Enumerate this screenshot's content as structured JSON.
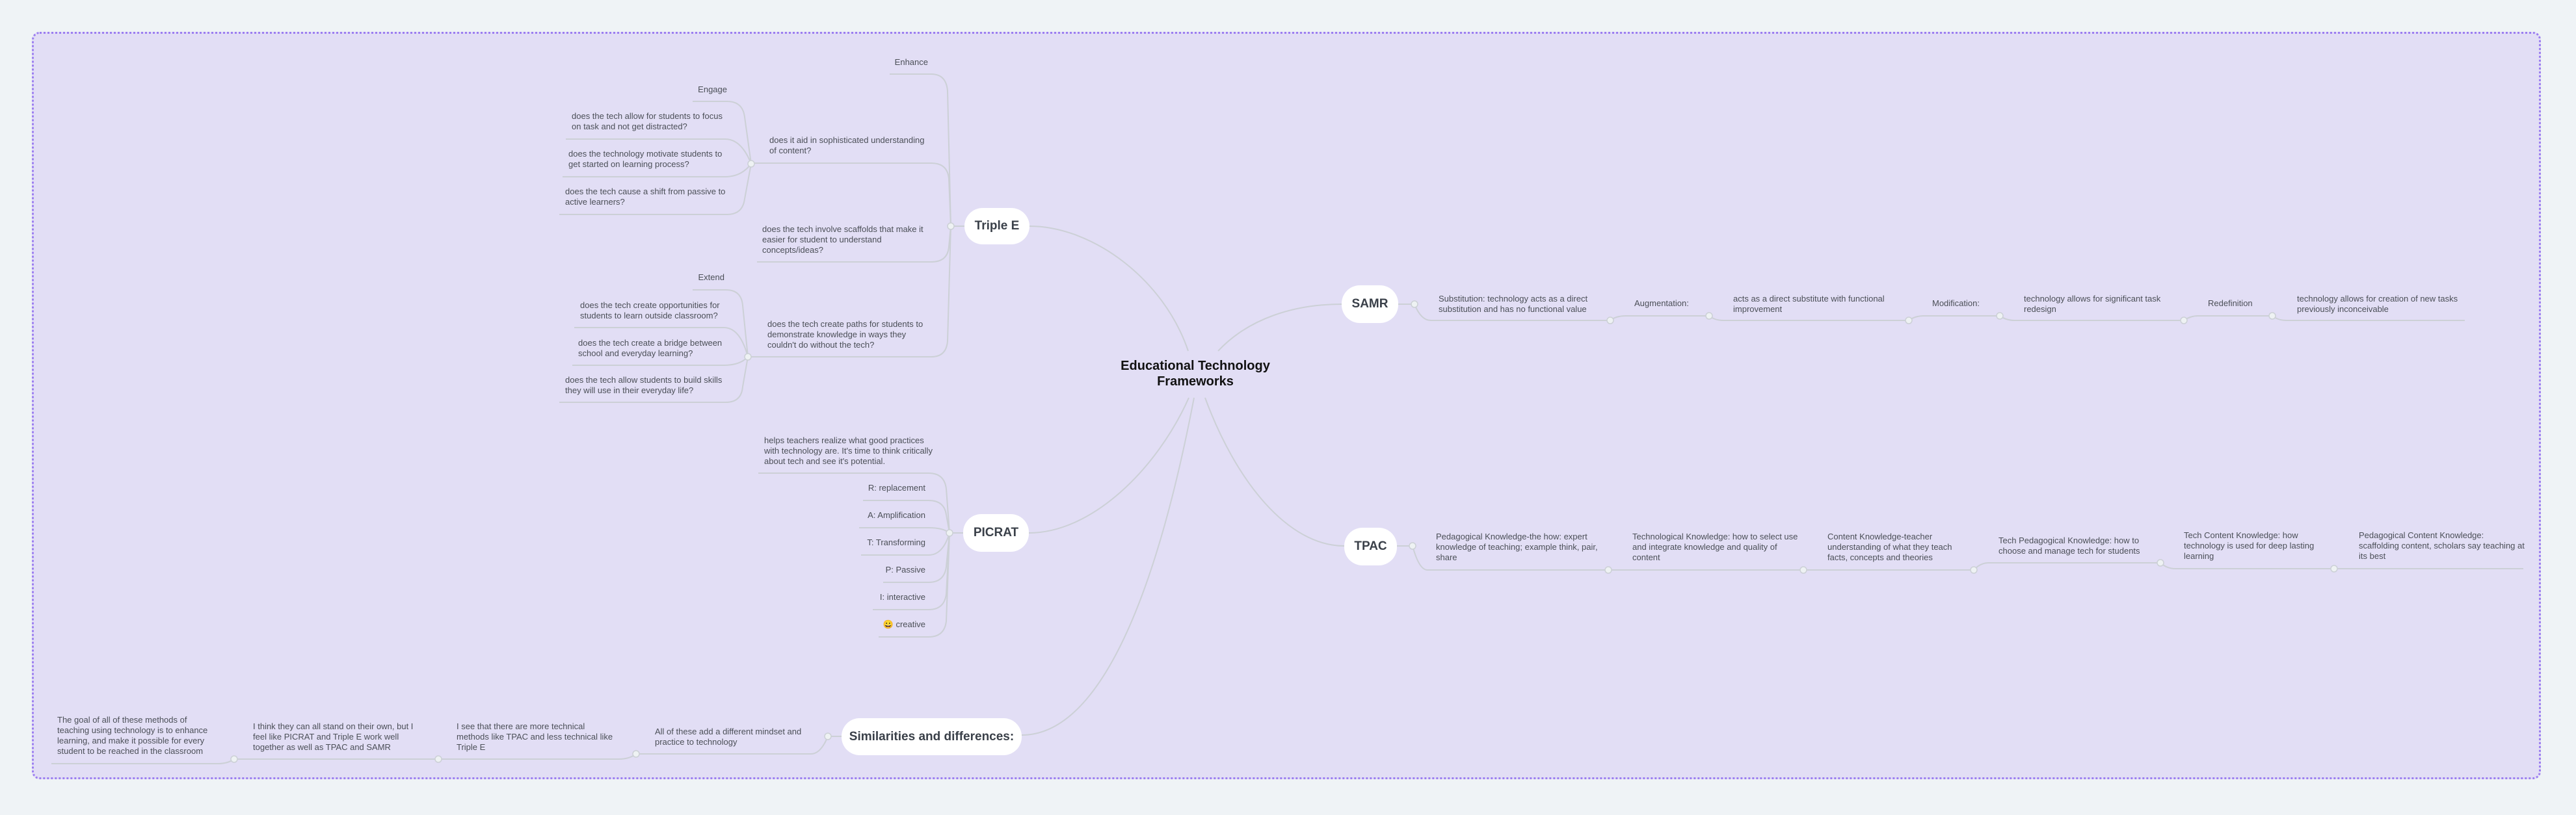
{
  "central": {
    "title": "Educational Technology Frameworks"
  },
  "triple_e": {
    "label": "Triple E",
    "enhance": "Enhance",
    "aid": "does it aid in sophisticated understanding of content?",
    "engage": "Engage",
    "engage_items": [
      "does the tech allow for students to focus on task and not get distracted?",
      "does the technology motivate students to get started on learning process?",
      "does the tech cause a shift from passive to active learners?"
    ],
    "scaffolds": "does the tech involve scaffolds that make it easier for student to understand concepts/ideas?",
    "paths": "does the tech create paths for students to demonstrate knowledge in ways they couldn't do without the tech?",
    "extend": "Extend",
    "extend_items": [
      "does the tech create opportunities for students to learn outside classroom?",
      "does the tech create a bridge between school and everyday learning?",
      "does the tech allow students to build skills they will use in their everyday life?"
    ]
  },
  "picrat": {
    "label": "PICRAT",
    "items": [
      "helps teachers realize what good practices with technology are. It's time to think critically about tech and see it's potential.",
      "R: replacement",
      "A: Amplification",
      "T: Transforming",
      "P: Passive",
      "I: interactive",
      "😀 creative"
    ]
  },
  "samr": {
    "label": "SAMR",
    "items": [
      "Substitution: technology acts as a direct substitution and has no functional value",
      "Augmentation:",
      "acts as a direct substitute with functional improvement",
      "Modification:",
      "technology allows for significant task redesign",
      "Redefinition",
      "technology allows for creation of new tasks previously inconceivable"
    ]
  },
  "tpac": {
    "label": "TPAC",
    "items": [
      "Pedagogical Knowledge-the how: expert knowledge of teaching; example think, pair, share",
      "Technological Knowledge: how to select use and integrate knowledge and quality of content",
      "Content Knowledge-teacher understanding of what they teach facts, concepts and theories",
      "Tech Pedagogical Knowledge: how to choose and manage tech for students",
      "Tech Content Knowledge: how technology is used for deep lasting learning",
      "Pedagogical Content Knowledge: scaffolding content, scholars say teaching at its best"
    ]
  },
  "similarities": {
    "label": "Similarities and differences:",
    "items": [
      "All of these add a different mindset and practice to technology",
      "I see that there are more technical methods like TPAC and less technical like Triple E",
      "I think they can all stand on their own, but I feel like PICRAT and Triple E work well together as well as TPAC and SAMR",
      "The goal of all of these methods of teaching using technology is to enhance learning, and make it possible for every student to be reached in the classroom"
    ]
  },
  "colors": {
    "canvas": "#e2def5",
    "border": "#9b7df0",
    "connector": "#ccd0d6",
    "node": "#ffffff"
  }
}
